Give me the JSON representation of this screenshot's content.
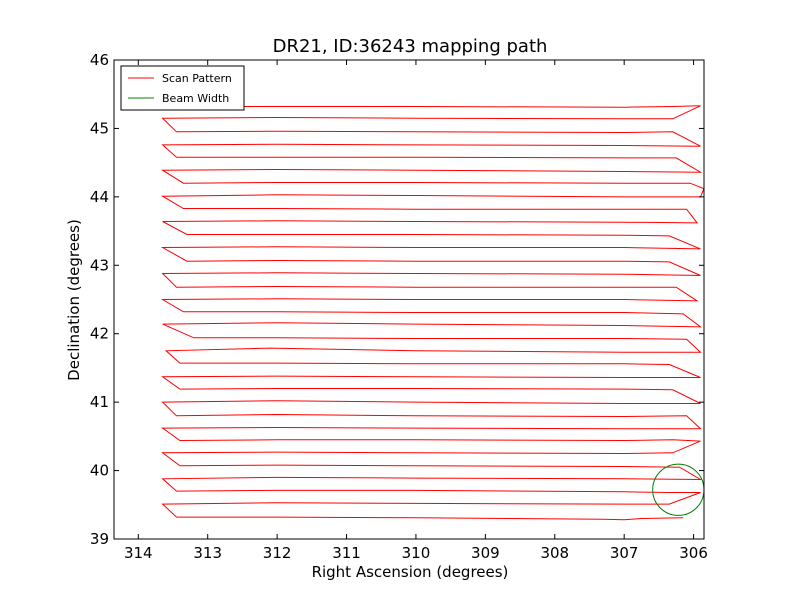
{
  "chart_data": {
    "type": "line",
    "title": "DR21, ID:36243 mapping path",
    "xlabel": "Right Ascension (degrees)",
    "ylabel": "Declination (degrees)",
    "xlim": [
      314.35,
      305.85
    ],
    "ylim": [
      39,
      46
    ],
    "x_inverted": true,
    "xticks": [
      314,
      313,
      312,
      311,
      310,
      309,
      308,
      307,
      306
    ],
    "yticks": [
      39,
      40,
      41,
      42,
      43,
      44,
      45,
      46
    ],
    "grid": false,
    "legend": {
      "placement": "top-left",
      "entries": [
        {
          "label": "Scan Pattern",
          "color": "#ff0000"
        },
        {
          "label": "Beam Width",
          "color": "#008000"
        }
      ]
    },
    "series": [
      {
        "name": "Scan Pattern",
        "color": "#ff0000",
        "points": [
          [
            306.15,
            39.31
          ],
          [
            306.75,
            39.3
          ],
          [
            307.0,
            39.28
          ],
          [
            307.3,
            39.29
          ],
          [
            310.0,
            39.31
          ],
          [
            312.0,
            39.32
          ],
          [
            313.45,
            39.32
          ],
          [
            313.65,
            39.51
          ],
          [
            312.0,
            39.53
          ],
          [
            310.0,
            39.52
          ],
          [
            307.0,
            39.51
          ],
          [
            306.35,
            39.51
          ],
          [
            305.9,
            39.68
          ],
          [
            306.35,
            39.68
          ],
          [
            307.0,
            39.69
          ],
          [
            310.0,
            39.71
          ],
          [
            312.0,
            39.71
          ],
          [
            313.45,
            39.7
          ],
          [
            313.65,
            39.88
          ],
          [
            312.0,
            39.9
          ],
          [
            310.0,
            39.89
          ],
          [
            307.0,
            39.88
          ],
          [
            305.9,
            39.87
          ],
          [
            306.2,
            40.05
          ],
          [
            307.0,
            40.06
          ],
          [
            310.0,
            40.07
          ],
          [
            312.0,
            40.08
          ],
          [
            313.4,
            40.07
          ],
          [
            313.65,
            40.26
          ],
          [
            312.0,
            40.27
          ],
          [
            310.0,
            40.26
          ],
          [
            307.0,
            40.25
          ],
          [
            306.3,
            40.26
          ],
          [
            305.9,
            40.43
          ],
          [
            306.3,
            40.45
          ],
          [
            307.0,
            40.44
          ],
          [
            310.0,
            40.45
          ],
          [
            312.0,
            40.45
          ],
          [
            313.4,
            40.44
          ],
          [
            313.65,
            40.62
          ],
          [
            312.0,
            40.63
          ],
          [
            310.0,
            40.62
          ],
          [
            307.0,
            40.61
          ],
          [
            305.9,
            40.61
          ],
          [
            306.1,
            40.8
          ],
          [
            307.0,
            40.79
          ],
          [
            310.0,
            40.8
          ],
          [
            312.0,
            40.82
          ],
          [
            313.45,
            40.8
          ],
          [
            313.65,
            41.0
          ],
          [
            312.0,
            41.02
          ],
          [
            310.0,
            41.0
          ],
          [
            307.0,
            40.98
          ],
          [
            305.9,
            40.98
          ],
          [
            306.3,
            41.18
          ],
          [
            307.0,
            41.19
          ],
          [
            310.0,
            41.2
          ],
          [
            312.0,
            41.2
          ],
          [
            313.4,
            41.19
          ],
          [
            313.65,
            41.37
          ],
          [
            312.0,
            41.38
          ],
          [
            310.0,
            41.37
          ],
          [
            307.0,
            41.36
          ],
          [
            305.9,
            41.36
          ],
          [
            306.35,
            41.55
          ],
          [
            307.0,
            41.56
          ],
          [
            310.0,
            41.56
          ],
          [
            312.0,
            41.57
          ],
          [
            313.4,
            41.57
          ],
          [
            313.6,
            41.75
          ],
          [
            312.1,
            41.79
          ],
          [
            310.0,
            41.75
          ],
          [
            307.0,
            41.73
          ],
          [
            305.9,
            41.73
          ],
          [
            306.1,
            41.92
          ],
          [
            307.0,
            41.93
          ],
          [
            310.0,
            41.93
          ],
          [
            312.0,
            41.94
          ],
          [
            313.2,
            41.94
          ],
          [
            313.65,
            42.14
          ],
          [
            312.0,
            42.16
          ],
          [
            310.0,
            42.14
          ],
          [
            307.0,
            42.12
          ],
          [
            305.9,
            42.1
          ],
          [
            306.15,
            42.29
          ],
          [
            307.0,
            42.31
          ],
          [
            310.0,
            42.31
          ],
          [
            312.0,
            42.32
          ],
          [
            313.35,
            42.32
          ],
          [
            313.65,
            42.5
          ],
          [
            312.0,
            42.51
          ],
          [
            310.0,
            42.5
          ],
          [
            307.0,
            42.5
          ],
          [
            305.95,
            42.48
          ],
          [
            306.25,
            42.68
          ],
          [
            307.0,
            42.68
          ],
          [
            310.0,
            42.68
          ],
          [
            312.0,
            42.69
          ],
          [
            313.45,
            42.68
          ],
          [
            313.65,
            42.88
          ],
          [
            312.0,
            42.89
          ],
          [
            310.0,
            42.88
          ],
          [
            307.0,
            42.87
          ],
          [
            305.9,
            42.85
          ],
          [
            306.35,
            43.05
          ],
          [
            307.0,
            43.06
          ],
          [
            310.0,
            43.06
          ],
          [
            312.0,
            43.07
          ],
          [
            313.3,
            43.06
          ],
          [
            313.65,
            43.26
          ],
          [
            312.0,
            43.27
          ],
          [
            310.0,
            43.26
          ],
          [
            307.0,
            43.26
          ],
          [
            305.9,
            43.24
          ],
          [
            306.35,
            43.43
          ],
          [
            307.0,
            43.44
          ],
          [
            310.0,
            43.45
          ],
          [
            312.0,
            43.45
          ],
          [
            313.3,
            43.45
          ],
          [
            313.65,
            43.64
          ],
          [
            312.0,
            43.65
          ],
          [
            310.0,
            43.64
          ],
          [
            307.0,
            43.63
          ],
          [
            305.95,
            43.62
          ],
          [
            306.1,
            43.82
          ],
          [
            307.0,
            43.82
          ],
          [
            310.0,
            43.82
          ],
          [
            312.0,
            43.83
          ],
          [
            313.35,
            43.83
          ],
          [
            313.65,
            44.01
          ],
          [
            312.0,
            44.03
          ],
          [
            310.0,
            44.02
          ],
          [
            307.0,
            44.0
          ],
          [
            305.9,
            44.0
          ],
          [
            305.85,
            44.12
          ],
          [
            306.05,
            44.2
          ],
          [
            307.0,
            44.2
          ],
          [
            310.0,
            44.21
          ],
          [
            312.0,
            44.21
          ],
          [
            313.35,
            44.2
          ],
          [
            313.65,
            44.39
          ],
          [
            312.0,
            44.4
          ],
          [
            310.0,
            44.39
          ],
          [
            307.0,
            44.37
          ],
          [
            305.9,
            44.36
          ],
          [
            306.25,
            44.57
          ],
          [
            307.0,
            44.57
          ],
          [
            310.0,
            44.58
          ],
          [
            312.0,
            44.58
          ],
          [
            313.45,
            44.58
          ],
          [
            313.65,
            44.76
          ],
          [
            312.0,
            44.77
          ],
          [
            310.0,
            44.76
          ],
          [
            307.0,
            44.75
          ],
          [
            305.9,
            44.74
          ],
          [
            306.3,
            44.95
          ],
          [
            307.0,
            44.94
          ],
          [
            310.0,
            44.95
          ],
          [
            312.0,
            44.96
          ],
          [
            313.45,
            44.95
          ],
          [
            313.65,
            45.15
          ],
          [
            312.0,
            45.16
          ],
          [
            310.0,
            45.15
          ],
          [
            307.0,
            45.14
          ],
          [
            306.3,
            45.14
          ],
          [
            305.9,
            45.33
          ],
          [
            306.3,
            45.32
          ],
          [
            307.0,
            45.31
          ],
          [
            310.0,
            45.32
          ],
          [
            312.0,
            45.32
          ],
          [
            313.65,
            45.32
          ]
        ]
      },
      {
        "name": "Beam Width",
        "color": "#008000",
        "shape": "circle",
        "center": [
          306.22,
          39.72
        ],
        "radius_y": 0.375
      }
    ]
  }
}
